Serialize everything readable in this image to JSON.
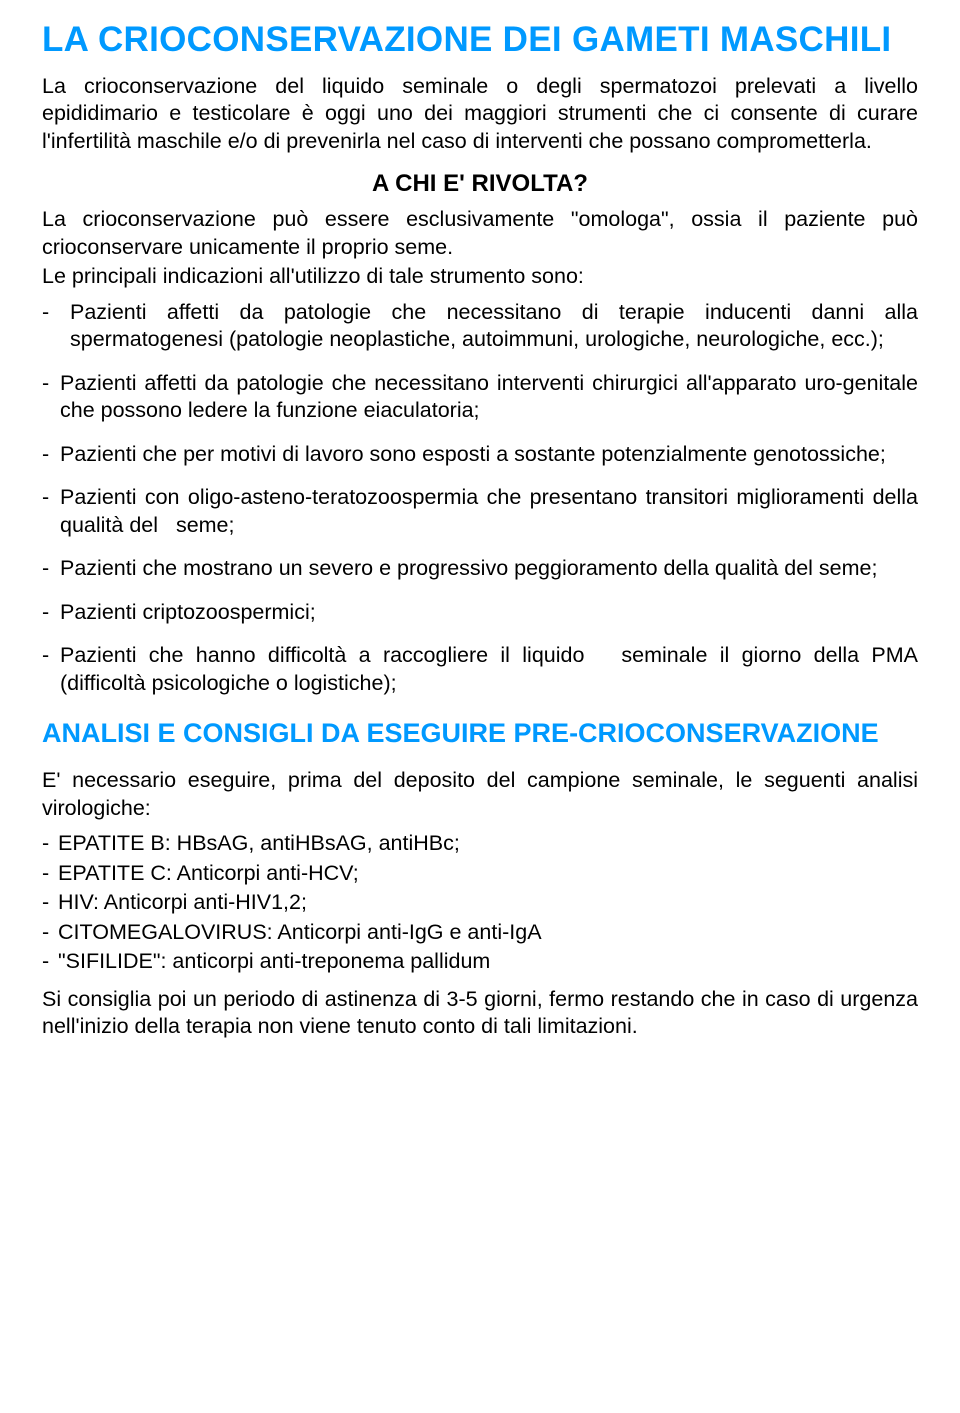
{
  "colors": {
    "heading": "#0099ff",
    "body_text": "#000000",
    "background": "#ffffff"
  },
  "typography": {
    "font_family": "Trebuchet MS",
    "title_fontsize_pt": 26,
    "section_fontsize_pt": 20,
    "subhead_fontsize_pt": 18,
    "body_fontsize_pt": 16
  },
  "title": "LA CRIOCONSERVAZIONE DEI GAMETI MASCHILI",
  "intro": "La crioconservazione del liquido seminale o degli spermatozoi prelevati a livello epididimario e testicolare è oggi uno dei maggiori strumenti che ci consente di curare l'infertilità maschile e/o di prevenirla nel caso di interventi che possano comprometterla.",
  "sub_head_1": "A CHI E' RIVOLTA?",
  "p1": "La crioconservazione può essere esclusivamente \"omologa\", ossia il paziente può crioconservare unicamente il proprio seme.",
  "p2": "Le principali indicazioni all'utilizzo di tale strumento sono:",
  "indications": [
    "Pazienti affetti da patologie che necessitano di terapie inducenti danni alla spermatogenesi (patologie neoplastiche, autoimmuni, urologiche, neurologiche, ecc.);",
    "Pazienti affetti da patologie che necessitano interventi chirurgici all'apparato uro-genitale che possono ledere la funzione eiaculatoria;",
    "Pazienti che per motivi di lavoro sono esposti a sostante potenzialmente genotossiche;",
    "Pazienti con oligo-asteno-teratozoospermia che presentano transitori miglioramenti della qualità del   seme;",
    "Pazienti che mostrano un severo e progressivo peggioramento della qualità del seme;",
    "Pazienti criptozoospermici;",
    "Pazienti che hanno difficoltà a raccogliere il liquido   seminale il giorno della PMA (difficoltà psicologiche o logistiche);"
  ],
  "section_2_title": "ANALISI E CONSIGLI DA ESEGUIRE PRE-CRIOCONSERVAZIONE",
  "p3": "E' necessario eseguire, prima del deposito del campione seminale, le seguenti analisi virologiche:",
  "tests": [
    "EPATITE B: HBsAG, antiHBsAG, antiHBc;",
    "EPATITE C: Anticorpi anti-HCV;",
    "HIV: Anticorpi anti-HIV1,2;",
    "CITOMEGALOVIRUS: Anticorpi anti-IgG e anti-IgA",
    "\"SIFILIDE\": anticorpi anti-treponema pallidum"
  ],
  "p4": "Si consiglia poi un periodo di astinenza di 3-5 giorni, fermo restando che in caso di urgenza nell'inizio della terapia non viene tenuto conto di tali limitazioni."
}
